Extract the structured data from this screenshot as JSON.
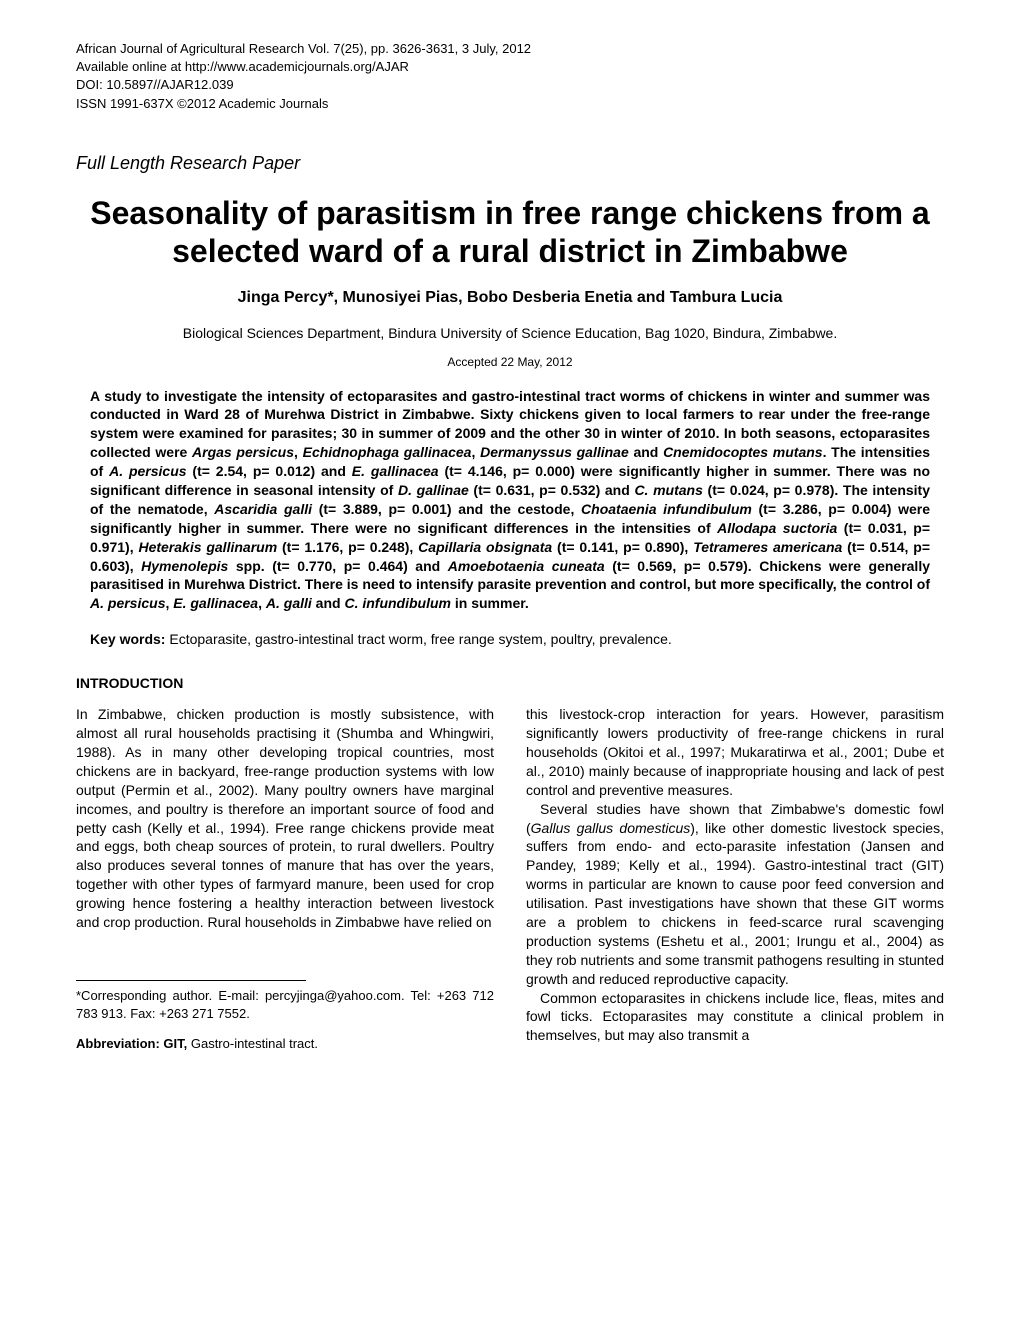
{
  "header": {
    "line1": "African Journal of Agricultural Research Vol. 7(25), pp. 3626-3631, 3 July, 2012",
    "line2": "Available online at http://www.academicjournals.org/AJAR",
    "line3": "DOI: 10.5897//AJAR12.039",
    "line4": "ISSN 1991-637X ©2012 Academic Journals"
  },
  "paper_type": "Full Length Research Paper",
  "title": "Seasonality of parasitism in free range chickens from a selected ward of a rural district in Zimbabwe",
  "authors": "Jinga Percy*, Munosiyei Pias, Bobo Desberia Enetia and Tambura Lucia",
  "affiliation": "Biological Sciences Department, Bindura University of Science Education, Bag 1020, Bindura, Zimbabwe.",
  "accepted": "Accepted 22 May, 2012",
  "abstract": {
    "text_parts": [
      "A study to investigate the intensity of ectoparasites and gastro-intestinal tract worms of chickens in winter and summer was conducted in Ward 28 of Murehwa District in Zimbabwe. Sixty chickens given to local farmers to rear under the free-range system were examined for parasites; 30 in summer of 2009 and the other 30 in winter of 2010. In both seasons, ectoparasites collected were ",
      "Argas persicus",
      ", ",
      "Echidnophaga gallinacea",
      ", ",
      "Dermanyssus gallinae",
      " and ",
      "Cnemidocoptes mutans",
      ". The intensities of ",
      "A. persicus",
      " (t= 2.54, p= 0.012) and ",
      "E. gallinacea",
      " (t= 4.146, p= 0.000) were significantly higher in summer. There was no significant difference in seasonal intensity of ",
      "D. gallinae",
      " (t= 0.631, p= 0.532) and ",
      "C. mutans",
      " (t= 0.024, p= 0.978). The intensity of the nematode, ",
      "Ascaridia galli",
      " (t= 3.889, p= 0.001) and the cestode, ",
      "Choataenia infundibulum",
      " (t= 3.286, p= 0.004) were significantly higher in summer. There were no significant differences in the intensities of ",
      "Allodapa suctoria",
      " (t= 0.031, p= 0.971), ",
      "Heterakis gallinarum",
      " (t= 1.176, p= 0.248), ",
      "Capillaria obsignata",
      " (t= 0.141, p= 0.890), ",
      "Tetrameres americana",
      " (t= 0.514, p= 0.603), ",
      "Hymenolepis",
      " spp. (t= 0.770, p= 0.464) and ",
      "Amoebotaenia cuneata",
      " (t= 0.569, p= 0.579). Chickens were generally parasitised in Murehwa District. There is need to intensify parasite prevention and control, but more specifically, the control of ",
      "A. persicus",
      ", ",
      "E. gallinacea",
      ", ",
      "A. galli",
      " and ",
      "C. infundibulum",
      " in summer."
    ],
    "italic_indices": [
      1,
      3,
      5,
      7,
      9,
      11,
      13,
      15,
      17,
      19,
      21,
      23,
      25,
      27,
      29,
      31,
      33,
      35,
      37,
      39
    ]
  },
  "keywords": {
    "label": "Key words:",
    "text": " Ectoparasite, gastro-intestinal tract worm, free range system, poultry, prevalence."
  },
  "intro_heading": "INTRODUCTION",
  "col_left": {
    "para1": "In Zimbabwe, chicken production is mostly subsistence, with almost all rural households practising it (Shumba and Whingwiri, 1988). As in many other developing tropical countries, most chickens are in backyard, free-range production systems with low output (Permin et al., 2002). Many poultry owners have marginal incomes, and poultry is therefore an important source of food and petty cash (Kelly et al., 1994).  Free range chickens provide meat and eggs, both cheap sources of protein, to rural dwellers. Poultry also produces several tonnes of manure that has over the years, together with other types of farmyard manure, been used for crop growing hence fostering a healthy interaction between livestock and crop production. Rural households in Zimbabwe have relied on"
  },
  "col_right": {
    "para1": "this livestock-crop interaction for years. However, parasitism significantly lowers productivity of free-range chickens in rural households (Okitoi et al., 1997; Mukaratirwa et al., 2001; Dube et al., 2010) mainly because of inappropriate housing and lack of pest control and preventive measures.",
    "para2_pre": "Several studies have shown that Zimbabwe's domestic fowl (",
    "para2_italic": "Gallus gallus domesticus",
    "para2_post": "), like other domestic livestock species, suffers from endo- and ecto-parasite infestation (Jansen and Pandey, 1989; Kelly et al., 1994). Gastro-intestinal tract (GIT) worms in particular are known to cause poor feed conversion and utilisation. Past investigations have shown that these GIT worms are a problem to chickens in feed-scarce rural scavenging production systems (Eshetu et al., 2001; Irungu et al., 2004) as they rob nutrients and some transmit pathogens resulting in stunted growth and reduced reproductive capacity.",
    "para3": "Common ectoparasites in chickens include lice, fleas, mites and fowl ticks. Ectoparasites may constitute a clinical problem in themselves, but  may  also  transmit  a"
  },
  "footnote": {
    "corresponding": "*Corresponding author. E-mail: percyjinga@yahoo.com. Tel: +263 712 783 913. Fax: +263 271 7552.",
    "abbrev_label": "Abbreviation: GIT,",
    "abbrev_text": " Gastro-intestinal tract."
  }
}
